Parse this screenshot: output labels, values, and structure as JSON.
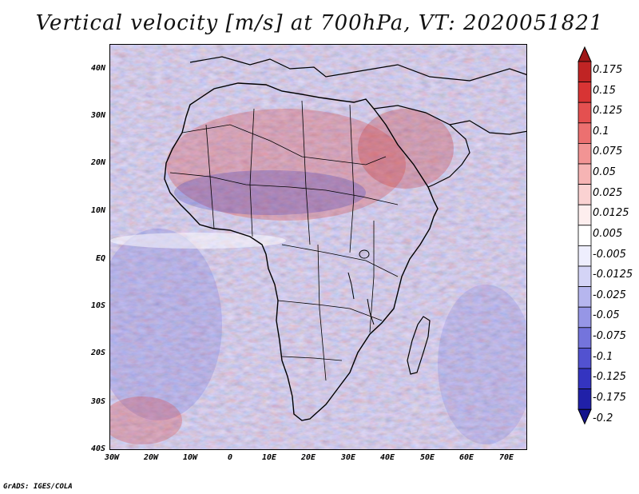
{
  "title": "Vertical velocity [m/s] at 700hPa, VT: 2020051821",
  "credit": "GrADS: IGES/COLA",
  "map": {
    "lat_labels": [
      "40N",
      "30N",
      "20N",
      "10N",
      "EQ",
      "10S",
      "20S",
      "30S",
      "40S"
    ],
    "lon_labels": [
      "30W",
      "20W",
      "10W",
      "0",
      "10E",
      "20E",
      "30E",
      "40E",
      "50E",
      "60E",
      "70E"
    ],
    "lat_range": [
      -40,
      45
    ],
    "lon_range": [
      -30,
      75
    ],
    "colors": {
      "positive": "#e04848",
      "negative": "#4848d8",
      "neutral": "#ffffff",
      "coastline": "#000000"
    }
  },
  "colorbar": {
    "labels": [
      "0.175",
      "0.15",
      "0.125",
      "0.1",
      "0.075",
      "0.05",
      "0.025",
      "0.0125",
      "0.005",
      "-0.005",
      "-0.0125",
      "-0.025",
      "-0.05",
      "-0.075",
      "-0.1",
      "-0.125",
      "-0.175",
      "-0.2"
    ],
    "colors": [
      "#a01818",
      "#c02424",
      "#d83434",
      "#e45050",
      "#ec7070",
      "#f29494",
      "#f6b4b4",
      "#fad2d2",
      "#fdeeee",
      "#ffffff",
      "#eeeefd",
      "#d4d4f6",
      "#b6b6ee",
      "#9696e6",
      "#7474dc",
      "#5252d0",
      "#3434c0",
      "#2020a8",
      "#14148c"
    ]
  }
}
